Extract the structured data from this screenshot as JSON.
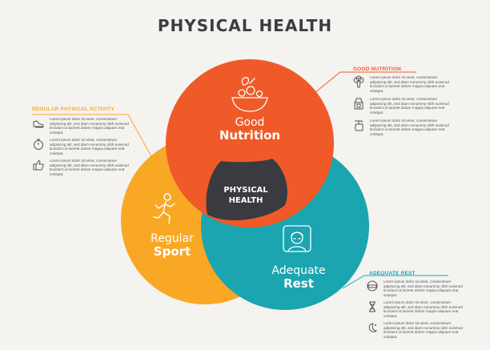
{
  "title": "PHYSICAL HEALTH",
  "colors": {
    "nutrition": "#f05a28",
    "sport": "#f9a826",
    "rest": "#1aa5b0",
    "center": "#3a3b40",
    "text": "#3b3d42"
  },
  "circles": {
    "nutrition": {
      "line1": "Good",
      "line2": "Nutrition",
      "icon": "salad-bowl-icon"
    },
    "sport": {
      "line1": "Regular",
      "line2": "Sport",
      "icon": "runner-icon"
    },
    "rest": {
      "line1": "Adequate",
      "line2": "Rest",
      "icon": "sleeping-person-icon"
    }
  },
  "center": {
    "line1": "PHYSICAL",
    "line2": "HEALTH"
  },
  "callouts": {
    "nutrition": {
      "title": "GOOD NUTRITION",
      "items": [
        {
          "icon": "broccoli-icon",
          "text": "Lorem ipsum dolor sit amet, consectetuer adipiscing elit, sed diam nonummy nibh euismod tincidunt ut laoreet dolore magna aliquam erat volutpat."
        },
        {
          "icon": "milk-carton-icon",
          "text": "Lorem ipsum dolor sit amet, consectetuer adipiscing elit, sed diam nonummy nibh euismod tincidunt ut laoreet dolore magna aliquam erat volutpat."
        },
        {
          "icon": "water-dispenser-icon",
          "text": "Lorem ipsum dolor sit amet, consectetuer adipiscing elit, sed diam nonummy nibh euismod tincidunt ut laoreet dolore magna aliquam erat volutpat."
        }
      ]
    },
    "sport": {
      "title": "REGULAR PHYSICAL ACTIVITY",
      "items": [
        {
          "icon": "sneaker-icon",
          "text": "Lorem ipsum dolor sit amet, consectetuer adipiscing elit, sed diam nonummy nibh euismod tincidunt ut laoreet dolore magna aliquam erat volutpat."
        },
        {
          "icon": "stopwatch-icon",
          "text": "Lorem ipsum dolor sit amet, consectetuer adipiscing elit, sed diam nonummy nibh euismod tincidunt ut laoreet dolore magna aliquam erat volutpat."
        },
        {
          "icon": "thumbs-up-icon",
          "text": "Lorem ipsum dolor sit amet, consectetuer adipiscing elit, sed diam nonummy nibh euismod tincidunt ut laoreet dolore magna aliquam erat volutpat."
        }
      ]
    },
    "rest": {
      "title": "ADEQUATE REST",
      "items": [
        {
          "icon": "sleep-mask-icon",
          "text": "Lorem ipsum dolor sit amet, consectetuer adipiscing elit, sed diam nonummy nibh euismod tincidunt ut laoreet dolore magna aliquam erat volutpat."
        },
        {
          "icon": "hourglass-icon",
          "text": "Lorem ipsum dolor sit amet, consectetuer adipiscing elit, sed diam nonummy nibh euismod tincidunt ut laoreet dolore magna aliquam erat volutpat."
        },
        {
          "icon": "moon-stars-icon",
          "text": "Lorem ipsum dolor sit amet, consectetuer adipiscing elit, sed diam nonummy nibh euismod tincidunt ut laoreet dolore magna aliquam erat volutpat."
        }
      ]
    }
  }
}
